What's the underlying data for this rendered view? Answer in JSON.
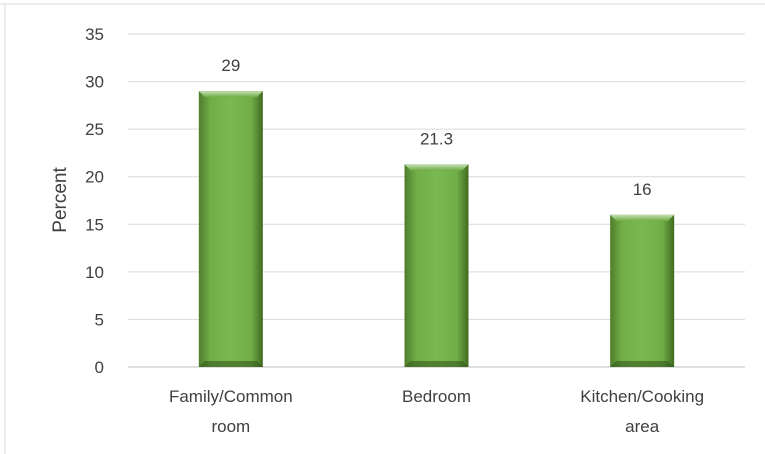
{
  "chart_data": {
    "type": "bar",
    "categories": [
      [
        "Family/Common",
        "room"
      ],
      [
        "Bedroom"
      ],
      [
        "Kitchen/Cooking",
        "area"
      ]
    ],
    "values": [
      29,
      21.3,
      16
    ],
    "data_labels": [
      "29",
      "21.3",
      "16"
    ],
    "ylabel": "Percent",
    "xlabel": "",
    "ylim": [
      0,
      35
    ],
    "yticks": [
      0,
      5,
      10,
      15,
      20,
      25,
      30,
      35
    ],
    "grid": true,
    "legend": "none",
    "bar_color": "#70ad47",
    "bar_color_dark": "#3f6b1f",
    "bar_color_light": "#a9d18e"
  }
}
